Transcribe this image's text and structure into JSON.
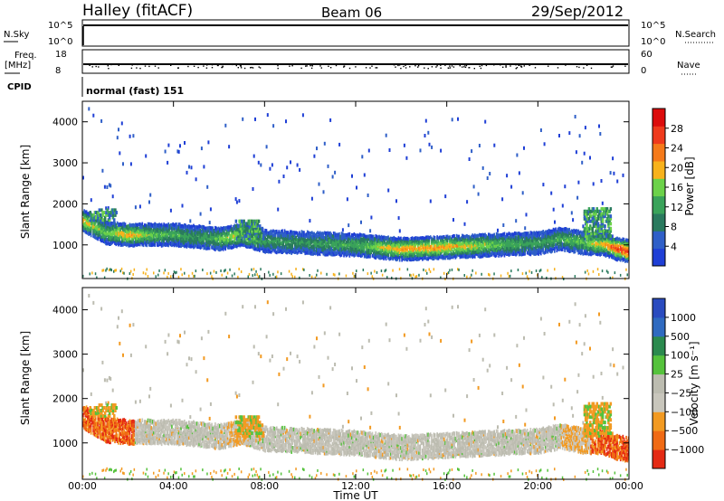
{
  "header": {
    "station": "Halley (fitACF)",
    "beam": "Beam 06",
    "date": "29/Sep/2012"
  },
  "params": {
    "nsky_label": "N.Sky",
    "nsky_ticks": [
      "10^5",
      "10^0"
    ],
    "nsearch_label": "N.Search",
    "nsearch_ticks": [
      "10^5",
      "10^0"
    ],
    "freq_label": "Freq.",
    "freq_unit": "[MHz]",
    "freq_ticks": [
      "18",
      "8"
    ],
    "nave_label": "Nave",
    "nave_ticks": [
      "60",
      "0"
    ],
    "cpid_label": "CPID",
    "cpid_text": "normal (fast) 151"
  },
  "colors": {
    "power": [
      "#1f3fd6",
      "#2f5fc8",
      "#2a7a5e",
      "#3aa35a",
      "#6cd24a",
      "#f7b21c",
      "#f57a1a",
      "#ef3a1c",
      "#dc0c0c"
    ],
    "velocity": [
      "#2a4bbf",
      "#2f6ac0",
      "#2b8a4e",
      "#55c23c",
      "#bcbcb0",
      "#c8c6bc",
      "#f29a22",
      "#f06a14",
      "#e42a14"
    ]
  },
  "chart_data": [
    {
      "type": "heatmap",
      "name": "power",
      "ylabel": "Slant Range [km]",
      "ylim": [
        180,
        4500
      ],
      "yticks": [
        1000,
        2000,
        3000,
        4000
      ],
      "xlim": [
        0,
        24
      ],
      "colorbar": {
        "label": "Power [dB]",
        "ticks": [
          "28",
          "24",
          "20",
          "16",
          "12",
          "8",
          "4"
        ],
        "range": [
          0,
          32
        ]
      },
      "echo_band": {
        "x_hours": [
          0,
          0.5,
          1,
          2,
          3,
          4,
          5,
          6,
          7,
          8,
          10,
          12,
          14,
          16,
          18,
          20,
          21,
          22,
          23,
          23.5,
          24
        ],
        "center_km": [
          1650,
          1500,
          1350,
          1300,
          1300,
          1300,
          1250,
          1200,
          1300,
          1150,
          1100,
          1050,
          950,
          1000,
          1050,
          1100,
          1200,
          1100,
          1050,
          950,
          900
        ],
        "peak_power_db": [
          22,
          18,
          16,
          22,
          16,
          14,
          12,
          16,
          20,
          12,
          12,
          14,
          22,
          22,
          16,
          12,
          14,
          16,
          22,
          28,
          28
        ]
      }
    },
    {
      "type": "heatmap",
      "name": "velocity",
      "ylabel": "Slant Range [km]",
      "ylim": [
        180,
        4500
      ],
      "yticks": [
        1000,
        2000,
        3000,
        4000
      ],
      "xlim": [
        0,
        24
      ],
      "xticks": [
        "00:00",
        "04:00",
        "08:00",
        "12:00",
        "16:00",
        "20:00",
        "00:00"
      ],
      "xlabel": "Time UT",
      "colorbar": {
        "label": "Velocity [m s⁻¹]",
        "ticks": [
          "1000",
          "500",
          "100",
          "25",
          "−25",
          "−100",
          "−500",
          "−1000"
        ]
      }
    }
  ]
}
